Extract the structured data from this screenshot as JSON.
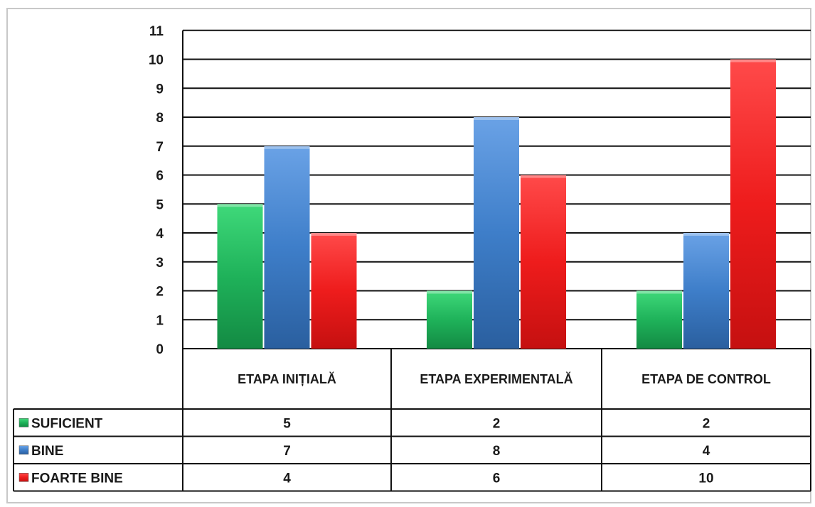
{
  "chart_data": {
    "type": "bar",
    "categories": [
      "ETAPA INIȚIALĂ",
      "ETAPA EXPERIMENTALĂ",
      "ETAPA DE CONTROL"
    ],
    "series": [
      {
        "name": "SUFICIENT",
        "color": "#1fb25a",
        "values": [
          5,
          2,
          2
        ]
      },
      {
        "name": "BINE",
        "color": "#3e7ec9",
        "values": [
          7,
          8,
          4
        ]
      },
      {
        "name": "FOARTE BINE",
        "color": "#ee1c1c",
        "values": [
          4,
          6,
          10
        ]
      }
    ],
    "ylim": [
      0,
      11
    ],
    "yticks": [
      0,
      1,
      2,
      3,
      4,
      5,
      6,
      7,
      8,
      9,
      10,
      11
    ],
    "grid": true,
    "legend": "data-table"
  }
}
